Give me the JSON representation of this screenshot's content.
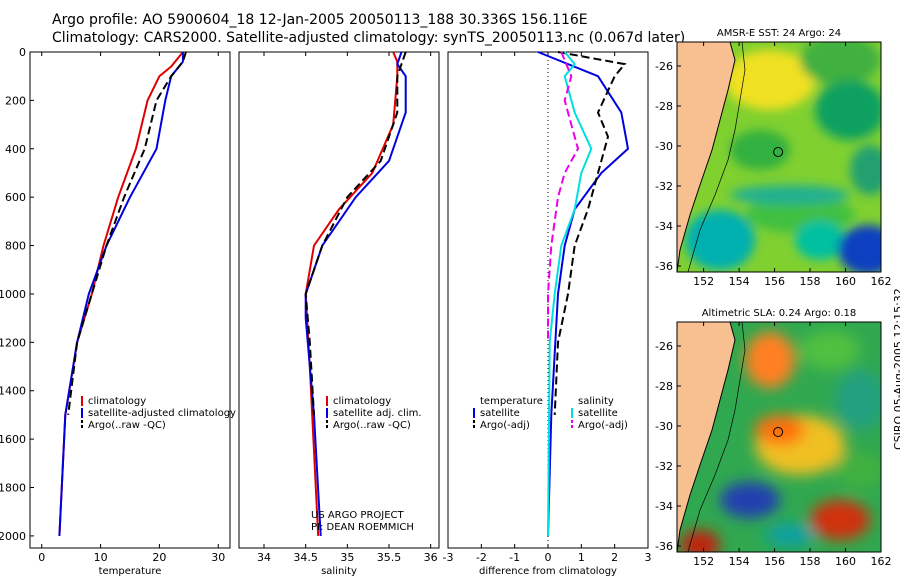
{
  "header": {
    "line1": "Argo profile: AO 5900604_18 12-Jan-2005 20050113_188 30.336S 156.116E",
    "line2": "Climatology: CARS2000. Satellite-adjusted climatology: synTS_20050113.nc (0.067d later)"
  },
  "stamp": "CSIRO 05-Aug-2005 12:15:32",
  "colors": {
    "climatology": "#e00000",
    "satellite": "#0000e0",
    "argo": "#000000",
    "salinity_sat": "#00e0e0",
    "salinity_argo": "#ee00ee",
    "land": "#f8c090"
  },
  "chart_data": [
    {
      "type": "line",
      "id": "temperature",
      "xlabel": "temperature",
      "xlim": [
        -2,
        32
      ],
      "ylim": [
        0,
        2050
      ],
      "xticks": [
        0,
        10,
        20,
        30
      ],
      "yticks": [
        0,
        200,
        400,
        600,
        800,
        1000,
        1200,
        1400,
        1600,
        1800,
        2000
      ],
      "legend": [
        "climatology",
        "satellite-adjusted climatology",
        "Argo(..raw -QC)"
      ],
      "series": [
        {
          "name": "climatology",
          "color": "#e00000",
          "points": [
            [
              24,
              0
            ],
            [
              22,
              60
            ],
            [
              20,
              100
            ],
            [
              18,
              200
            ],
            [
              16,
              400
            ],
            [
              13,
              600
            ],
            [
              10.5,
              800
            ],
            [
              8.5,
              1000
            ],
            [
              6,
              1200
            ],
            [
              4,
              1500
            ],
            [
              3,
              2000
            ]
          ]
        },
        {
          "name": "satellite-adjusted climatology",
          "color": "#0000e0",
          "points": [
            [
              24,
              0
            ],
            [
              24,
              40
            ],
            [
              22,
              100
            ],
            [
              21,
              200
            ],
            [
              19.5,
              400
            ],
            [
              15,
              600
            ],
            [
              11,
              800
            ],
            [
              8,
              1000
            ],
            [
              6,
              1200
            ],
            [
              4,
              1500
            ],
            [
              3,
              2000
            ]
          ]
        },
        {
          "name": "Argo(..raw -QC)",
          "color": "#000000",
          "dash": true,
          "points": [
            [
              24.5,
              0
            ],
            [
              24,
              40
            ],
            [
              22,
              100
            ],
            [
              19.5,
              200
            ],
            [
              17.5,
              400
            ],
            [
              14,
              600
            ],
            [
              11,
              800
            ],
            [
              8.5,
              1000
            ],
            [
              6,
              1200
            ],
            [
              4.5,
              1500
            ]
          ]
        }
      ]
    },
    {
      "type": "line",
      "id": "salinity",
      "xlabel": "salinity",
      "xlim": [
        33.7,
        36.1
      ],
      "ylim": [
        0,
        2050
      ],
      "xticks": [
        34,
        34.5,
        35,
        35.5,
        36
      ],
      "legend": [
        "climatology",
        "satellite adj. clim.",
        "Argo(..raw -QC)"
      ],
      "annotation": [
        "US ARGO PROJECT",
        "PI: DEAN ROEMMICH"
      ],
      "series": [
        {
          "name": "climatology",
          "color": "#e00000",
          "points": [
            [
              35.55,
              0
            ],
            [
              35.6,
              40
            ],
            [
              35.6,
              100
            ],
            [
              35.55,
              300
            ],
            [
              35.3,
              500
            ],
            [
              34.9,
              650
            ],
            [
              34.6,
              800
            ],
            [
              34.5,
              1000
            ],
            [
              34.55,
              1300
            ],
            [
              34.65,
              2000
            ]
          ]
        },
        {
          "name": "satellite adj. clim.",
          "color": "#0000e0",
          "points": [
            [
              35.65,
              0
            ],
            [
              35.6,
              50
            ],
            [
              35.7,
              100
            ],
            [
              35.7,
              250
            ],
            [
              35.5,
              450
            ],
            [
              35.1,
              600
            ],
            [
              34.7,
              800
            ],
            [
              34.5,
              1000
            ],
            [
              34.5,
              1100
            ],
            [
              34.6,
              1500
            ],
            [
              34.68,
              2000
            ]
          ]
        },
        {
          "name": "Argo(..raw -QC)",
          "color": "#000000",
          "dash": true,
          "points": [
            [
              35.7,
              0
            ],
            [
              35.65,
              50
            ],
            [
              35.6,
              100
            ],
            [
              35.6,
              250
            ],
            [
              35.4,
              450
            ],
            [
              35.0,
              600
            ],
            [
              34.7,
              800
            ],
            [
              34.5,
              1000
            ],
            [
              34.55,
              1200
            ],
            [
              34.6,
              1500
            ]
          ]
        }
      ]
    },
    {
      "type": "line",
      "id": "difference",
      "xlabel": "difference from climatology",
      "xlim": [
        -3,
        3
      ],
      "ylim": [
        0,
        2050
      ],
      "xticks": [
        -3,
        -2,
        -1,
        0,
        1,
        2,
        3
      ],
      "legend_left": [
        "temperature",
        "satellite",
        "Argo(-adj)"
      ],
      "legend_right": [
        "salinity",
        "satellite",
        "Argo(-adj)"
      ],
      "series": [
        {
          "name": "temperature satellite",
          "color": "#0000e0",
          "points": [
            [
              -0.3,
              0
            ],
            [
              1.5,
              100
            ],
            [
              2.2,
              250
            ],
            [
              2.4,
              400
            ],
            [
              1.6,
              500
            ],
            [
              0.8,
              650
            ],
            [
              0.5,
              800
            ],
            [
              0.3,
              1000
            ],
            [
              0.1,
              1500
            ],
            [
              0,
              2000
            ]
          ]
        },
        {
          "name": "temperature Argo(-adj)",
          "color": "#000000",
          "dash": true,
          "points": [
            [
              0.3,
              0
            ],
            [
              2.3,
              50
            ],
            [
              2,
              100
            ],
            [
              1.5,
              250
            ],
            [
              1.8,
              350
            ],
            [
              1.5,
              500
            ],
            [
              1.2,
              650
            ],
            [
              0.8,
              800
            ],
            [
              0.6,
              1000
            ],
            [
              0.3,
              1200
            ],
            [
              0.2,
              1500
            ]
          ]
        },
        {
          "name": "salinity satellite",
          "color": "#00e0e0",
          "points": [
            [
              0.5,
              0
            ],
            [
              0.8,
              50
            ],
            [
              0.5,
              100
            ],
            [
              0.8,
              250
            ],
            [
              1.3,
              400
            ],
            [
              1,
              500
            ],
            [
              0.8,
              650
            ],
            [
              0.4,
              800
            ],
            [
              0.2,
              1000
            ],
            [
              0.05,
              1200
            ],
            [
              0,
              2000
            ]
          ]
        },
        {
          "name": "salinity Argo(-adj)",
          "color": "#ee00ee",
          "dash": true,
          "points": [
            [
              0.4,
              0
            ],
            [
              0.7,
              100
            ],
            [
              0.5,
              200
            ],
            [
              0.7,
              300
            ],
            [
              0.9,
              400
            ],
            [
              0.5,
              500
            ],
            [
              0.3,
              600
            ],
            [
              0.1,
              800
            ],
            [
              0,
              1000
            ],
            [
              0,
              1200
            ]
          ]
        }
      ]
    },
    {
      "type": "heatmap",
      "id": "sst_map",
      "title": "AMSR-E SST: 24 Argo: 24",
      "xlim": [
        150.5,
        162
      ],
      "ylim": [
        -36.3,
        -24.8
      ],
      "xticks": [
        152,
        154,
        156,
        158,
        160,
        162
      ],
      "yticks": [
        -26,
        -28,
        -30,
        -32,
        -34,
        -36
      ],
      "profile_marker": [
        156.2,
        -30.3
      ]
    },
    {
      "type": "heatmap",
      "id": "sla_map",
      "title": "Altimetric SLA: 0.24 Argo: 0.18",
      "xlim": [
        150.5,
        162
      ],
      "ylim": [
        -36.3,
        -24.8
      ],
      "xticks": [
        152,
        154,
        156,
        158,
        160,
        162
      ],
      "yticks": [
        -26,
        -28,
        -30,
        -32,
        -34,
        -36
      ],
      "profile_marker": [
        156.2,
        -30.3
      ]
    }
  ]
}
